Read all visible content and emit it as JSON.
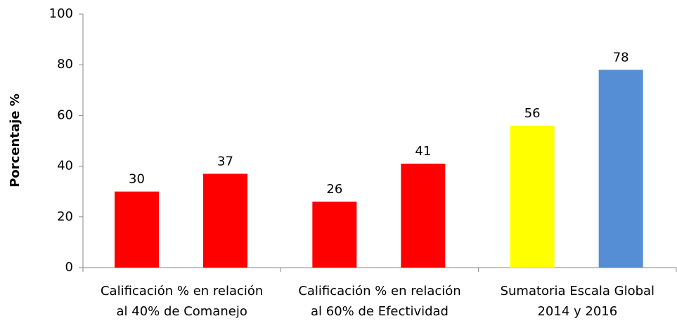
{
  "chart_data": {
    "type": "bar",
    "ylabel": "Porcentaje  %",
    "categories": [
      [
        "Calificación % en relación",
        "al 40% de Comanejo"
      ],
      [
        "Calificación % en relación",
        "al 60% de Efectividad"
      ],
      [
        "Sumatoria Escala Global",
        "2014 y 2016"
      ]
    ],
    "series": [
      {
        "values": [
          30,
          26,
          56
        ],
        "colors": [
          "#ff0000",
          "#ff0000",
          "#ffff00"
        ]
      },
      {
        "values": [
          37,
          41,
          78
        ],
        "colors": [
          "#ff0000",
          "#ff0000",
          "#558ed5"
        ]
      }
    ],
    "ylim": [
      0,
      100
    ],
    "yticks": [
      0,
      20,
      40,
      60,
      80,
      100
    ],
    "grid": false
  }
}
